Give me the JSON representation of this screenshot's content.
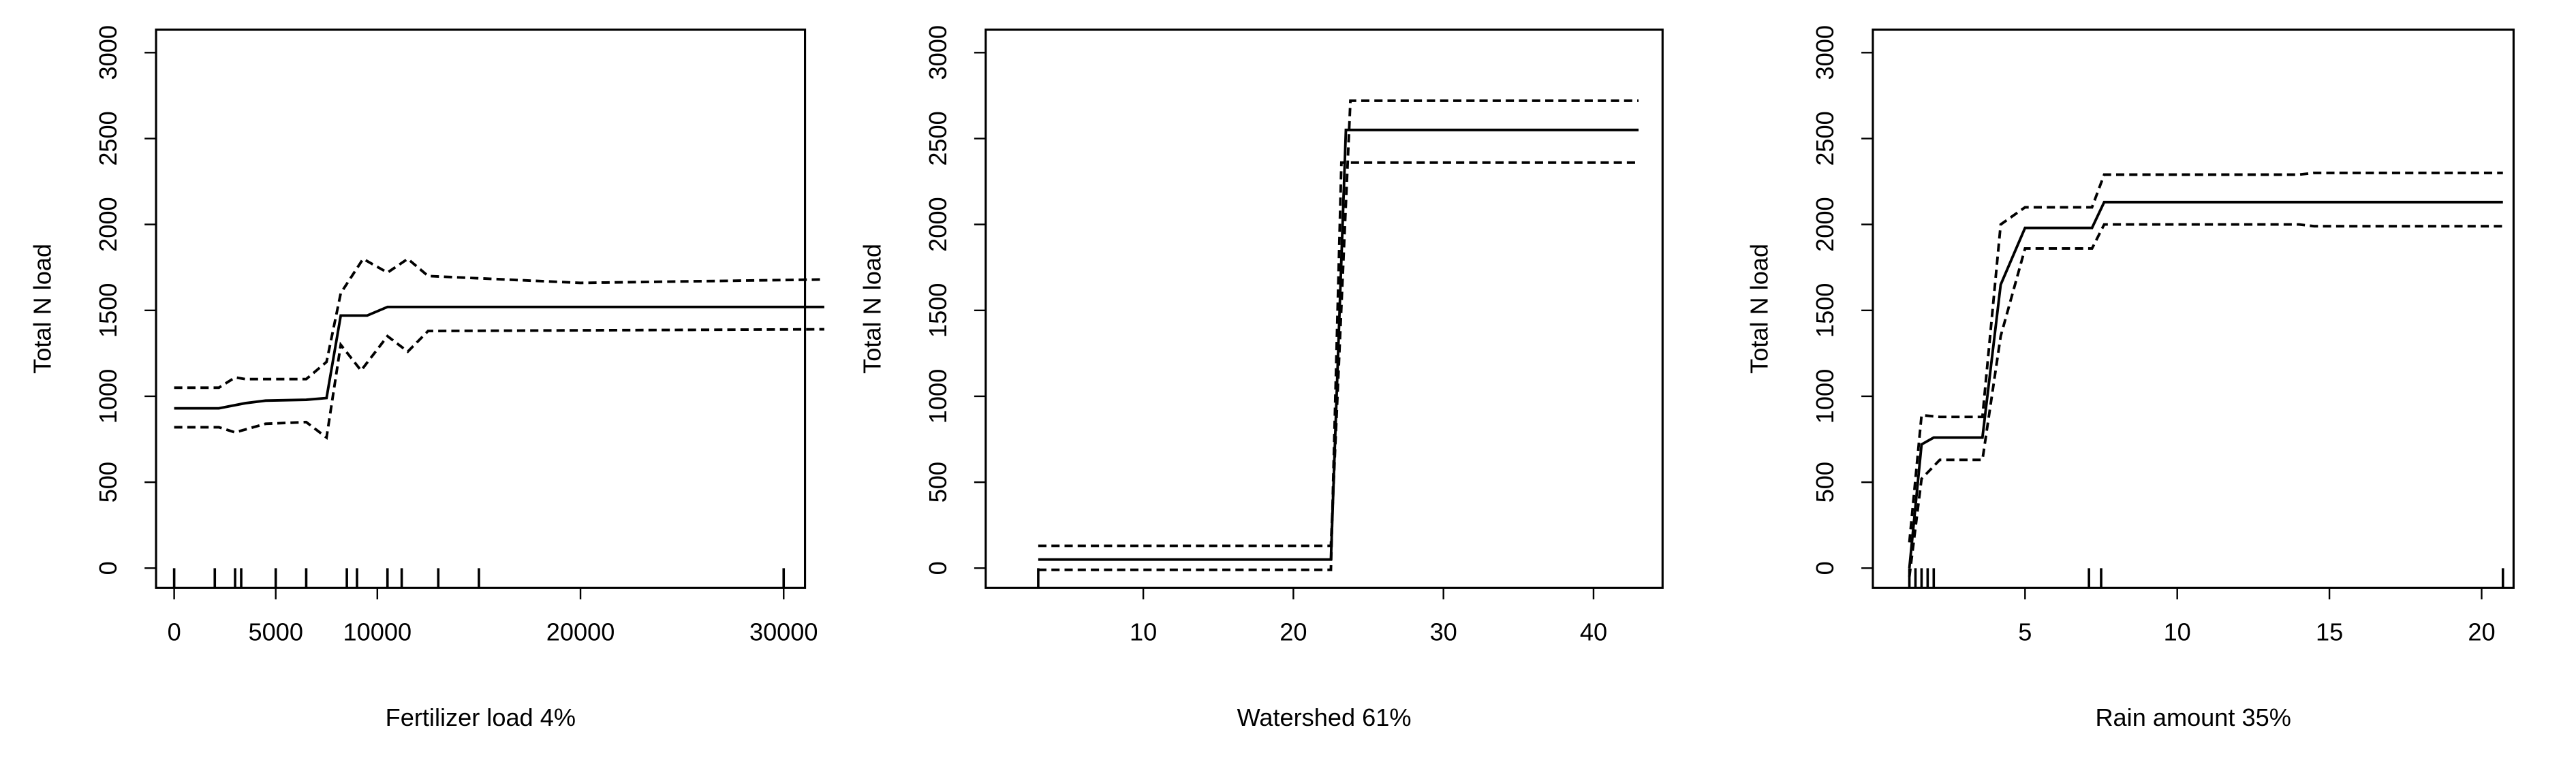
{
  "chart_data": [
    {
      "type": "line",
      "x_label": "Fertilizer load 4%",
      "y_label": "Total N load",
      "xlim": [
        -890,
        31050
      ],
      "ylim": [
        -115,
        3134
      ],
      "xticks": [
        0,
        5000,
        10000,
        20000,
        30000
      ],
      "yticks": [
        0,
        500,
        1000,
        1500,
        2000,
        2500,
        3000
      ],
      "rug": [
        0,
        2000,
        3000,
        3300,
        5000,
        6500,
        8500,
        9000,
        10500,
        11200,
        13000,
        15000,
        30000
      ],
      "series": [
        {
          "color": "#000000",
          "style": "solid",
          "x": [
            0,
            2200,
            3500,
            4500,
            6500,
            7500,
            8200,
            9500,
            10500,
            32000
          ],
          "values": [
            930,
            930,
            960,
            975,
            980,
            990,
            1470,
            1470,
            1520,
            1520
          ]
        },
        {
          "color": "#000000",
          "style": "dashed",
          "x": [
            0,
            2200,
            3000,
            3500,
            6500,
            7500,
            8200,
            9300,
            10500,
            11500,
            12500,
            20000,
            32000
          ],
          "values": [
            1050,
            1050,
            1110,
            1100,
            1100,
            1200,
            1600,
            1800,
            1720,
            1800,
            1700,
            1660,
            1680
          ]
        },
        {
          "color": "#000000",
          "style": "dashed",
          "x": [
            0,
            2200,
            3000,
            4500,
            6500,
            7500,
            8200,
            9200,
            10500,
            11500,
            12500,
            32000
          ],
          "values": [
            820,
            820,
            790,
            840,
            850,
            760,
            1300,
            1150,
            1350,
            1260,
            1380,
            1390
          ]
        }
      ]
    },
    {
      "type": "line",
      "x_label": "Watershed 61%",
      "y_label": "Total N load",
      "xlim": [
        -0.5,
        44.6
      ],
      "ylim": [
        -115,
        3134
      ],
      "xticks": [
        10,
        20,
        30,
        40
      ],
      "yticks": [
        0,
        500,
        1000,
        1500,
        2000,
        2500,
        3000
      ],
      "rug": [
        3
      ],
      "series": [
        {
          "color": "#000000",
          "style": "solid",
          "x": [
            3,
            22.5,
            23.5,
            43
          ],
          "values": [
            50,
            50,
            2550,
            2550
          ]
        },
        {
          "color": "#000000",
          "style": "dashed",
          "x": [
            3,
            22.5,
            23.8,
            43
          ],
          "values": [
            130,
            130,
            2720,
            2720
          ]
        },
        {
          "color": "#000000",
          "style": "dashed",
          "x": [
            3,
            22.5,
            23.2,
            43
          ],
          "values": [
            -10,
            -10,
            2360,
            2360
          ]
        }
      ]
    },
    {
      "type": "line",
      "x_label": "Rain amount 35%",
      "y_label": "Total N load",
      "xlim": [
        0,
        21.05
      ],
      "ylim": [
        -115,
        3134
      ],
      "xticks": [
        5,
        10,
        15,
        20
      ],
      "yticks": [
        0,
        500,
        1000,
        1500,
        2000,
        2500,
        3000
      ],
      "rug": [
        1.2,
        1.4,
        1.6,
        1.8,
        2.0,
        7.1,
        7.5,
        20.7
      ],
      "series": [
        {
          "color": "#000000",
          "style": "solid",
          "x": [
            1.2,
            1.6,
            2,
            3.6,
            4.2,
            5,
            7.2,
            7.6,
            20.7
          ],
          "values": [
            0,
            720,
            760,
            760,
            1650,
            1980,
            1980,
            2130,
            2130
          ]
        },
        {
          "color": "#000000",
          "style": "dashed",
          "x": [
            1.2,
            1.6,
            2.2,
            3.6,
            4.2,
            5,
            7.2,
            7.6,
            14,
            14.5,
            20.7
          ],
          "values": [
            150,
            890,
            880,
            880,
            2000,
            2100,
            2100,
            2290,
            2290,
            2300,
            2300
          ]
        },
        {
          "color": "#000000",
          "style": "dashed",
          "x": [
            1.2,
            1.6,
            2.2,
            3.6,
            4.2,
            5,
            7.2,
            7.6,
            14,
            14.5,
            20.7
          ],
          "values": [
            -50,
            520,
            630,
            630,
            1350,
            1860,
            1860,
            2000,
            2000,
            1990,
            1990
          ]
        }
      ]
    }
  ]
}
